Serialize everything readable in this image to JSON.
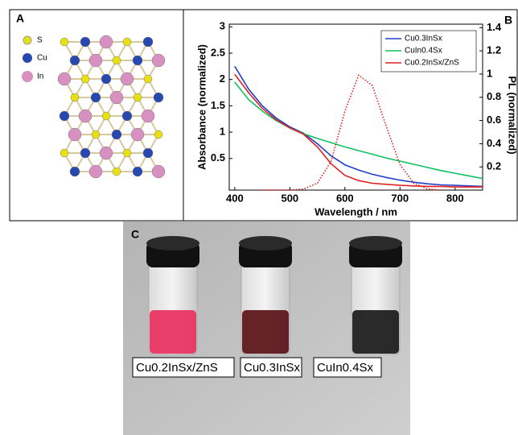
{
  "panel_a": {
    "label": "A",
    "legend": [
      "S",
      "Cu",
      "In"
    ]
  },
  "chart_data": {
    "type": "line",
    "panel_label": "B",
    "xlabel": "Wavelength / nm",
    "ylabel": "Absorbance (normalized)",
    "y2label": "PL (normalized)",
    "x": [
      400,
      425,
      450,
      475,
      500,
      525,
      550,
      575,
      600,
      625,
      650,
      675,
      700,
      725,
      750,
      775,
      800,
      825,
      850
    ],
    "series": [
      {
        "name": "Cu0.3InSx",
        "color": "#2040c8",
        "values": [
          2.25,
          1.82,
          1.5,
          1.27,
          1.1,
          0.98,
          0.78,
          0.55,
          0.38,
          0.28,
          0.2,
          0.14,
          0.09,
          0.05,
          0.02,
          0.0,
          -0.01,
          -0.02,
          -0.03
        ]
      },
      {
        "name": "CuIn0.4Sx",
        "color": "#10c060",
        "values": [
          1.95,
          1.62,
          1.4,
          1.22,
          1.08,
          0.97,
          0.88,
          0.8,
          0.72,
          0.65,
          0.58,
          0.51,
          0.45,
          0.39,
          0.33,
          0.27,
          0.22,
          0.17,
          0.12
        ]
      },
      {
        "name": "Cu0.2InSx/ZnS",
        "color": "#e02020",
        "values": [
          2.1,
          1.75,
          1.45,
          1.24,
          1.08,
          0.96,
          0.72,
          0.4,
          0.18,
          0.08,
          0.03,
          0.01,
          -0.01,
          -0.02,
          -0.03,
          -0.03,
          -0.04,
          -0.04,
          -0.04
        ]
      },
      {
        "color": "#e02020",
        "style": "dotted",
        "axis": "y2",
        "values": [
          null,
          null,
          0,
          0,
          0,
          0.01,
          0.06,
          0.25,
          0.68,
          0.99,
          0.9,
          0.55,
          0.22,
          0.06,
          0.01,
          0,
          null,
          null,
          null
        ]
      }
    ],
    "xlim": [
      390,
      850
    ],
    "xticks": [
      400,
      500,
      600,
      700,
      800
    ],
    "ylim": [
      -0.1,
      3.05
    ],
    "yticks": [
      0.5,
      1.0,
      1.5,
      2.0,
      2.5,
      3.0
    ],
    "y2lim": [
      0,
      1.43
    ],
    "y2ticks": [
      0.2,
      0.4,
      0.6,
      0.8,
      1.0,
      1.2,
      1.4
    ],
    "legend": "upper right",
    "grid": false
  },
  "panel_c": {
    "label": "C",
    "samples": [
      "Cu0.2InSx/ZnS",
      "Cu0.3InSx",
      "CuIn0.4Sx"
    ]
  }
}
